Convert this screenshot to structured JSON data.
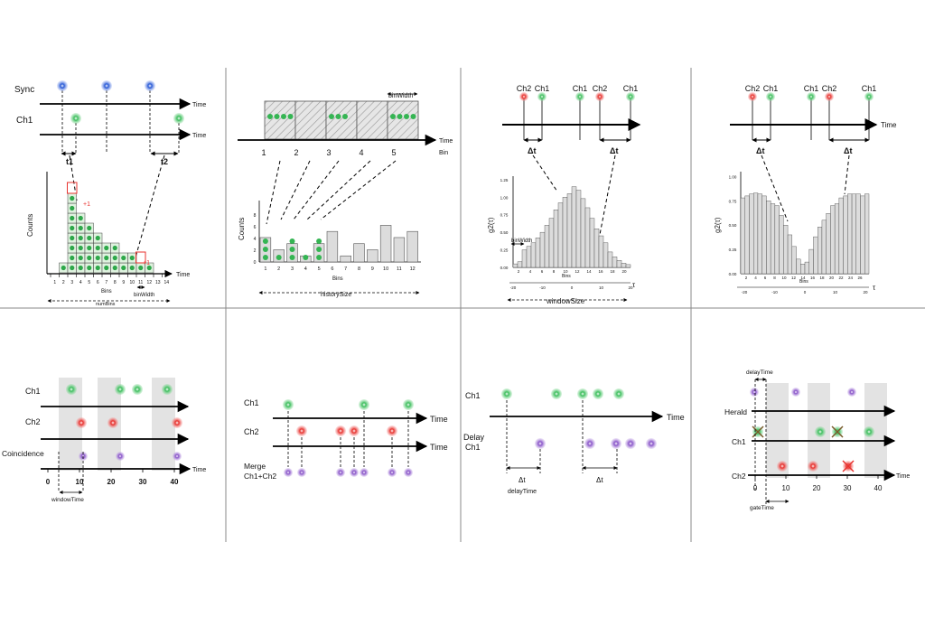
{
  "colors": {
    "green": "#22a64a",
    "red": "#e8332f",
    "blue": "#2a5bd7",
    "purple": "#8a56c9",
    "bar_fill": "#dcdcdc",
    "gate_fill": "#e3e3e3",
    "grid_line": "#777777"
  },
  "common": {
    "time": "Time"
  },
  "panel1": {
    "sync": "Sync",
    "ch1": "Ch1",
    "t1": "t1",
    "t2": "t2",
    "counts": "Counts",
    "plus1": "+1",
    "bins": "Bins",
    "binwidth": "binWidth",
    "numbins": "numBins",
    "ticks": [
      "1",
      "2",
      "3",
      "4",
      "5",
      "6",
      "7",
      "8",
      "9",
      "10",
      "11",
      "12",
      "13",
      "14"
    ],
    "histogram": [
      0,
      1,
      8,
      6,
      5,
      4,
      3,
      3,
      2,
      2,
      1,
      1,
      0,
      0
    ]
  },
  "panel2": {
    "binwidth": "binWidth",
    "bin": "Bin",
    "segments": [
      "1",
      "2",
      "3",
      "4",
      "5"
    ],
    "counts": "Counts",
    "bins": "Bins",
    "historysize": "historySize",
    "yticks": [
      "0",
      "2",
      "4",
      "6",
      "8"
    ],
    "xticks": [
      "1",
      "2",
      "3",
      "4",
      "5",
      "6",
      "7",
      "8",
      "9",
      "10",
      "11",
      "12"
    ],
    "values": [
      4,
      2,
      3,
      1,
      3,
      5,
      1,
      3,
      2,
      6,
      4,
      5
    ]
  },
  "panel3": {
    "labels": [
      "Ch2",
      "Ch1",
      "Ch1",
      "Ch2",
      "Ch1"
    ],
    "dt": "Δt",
    "ylabel": "g2(τ)",
    "tau": "τ",
    "binwidth": "binWidth",
    "bins": "Bins",
    "windowsize": "windowSize",
    "yticks": [
      "0.00",
      "0.25",
      "0.50",
      "0.75",
      "1.00",
      "1.25"
    ],
    "xticks_top": [
      "2",
      "4",
      "6",
      "8",
      "10",
      "12",
      "14",
      "16",
      "18",
      "20"
    ],
    "xticks_bottom": [
      "-20",
      "-10",
      "0",
      "10",
      "20"
    ],
    "values": [
      0.05,
      0.08,
      0.25,
      0.3,
      0.35,
      0.42,
      0.5,
      0.6,
      0.7,
      0.82,
      0.92,
      1.0,
      1.05,
      1.15,
      1.1,
      0.98,
      0.85,
      0.7,
      0.55,
      0.45,
      0.35,
      0.22,
      0.15,
      0.1,
      0.06,
      0.04
    ]
  },
  "panel4": {
    "labels": [
      "Ch2",
      "Ch1",
      "Ch1",
      "Ch2",
      "Ch1"
    ],
    "time": "Time",
    "dt": "Δt",
    "ylabel": "g2(τ)",
    "tau": "τ",
    "bins": "Bins",
    "yticks": [
      "0.00",
      "0.25",
      "0.50",
      "0.75",
      "1.00"
    ],
    "xticks_top": [
      "2",
      "4",
      "6",
      "8",
      "10",
      "12",
      "14",
      "16",
      "18",
      "20",
      "22",
      "24",
      "26"
    ],
    "xticks_bottom": [
      "-20",
      "-10",
      "0",
      "10",
      "20"
    ],
    "values": [
      0.78,
      0.8,
      0.82,
      0.83,
      0.82,
      0.8,
      0.75,
      0.72,
      0.7,
      0.6,
      0.5,
      0.4,
      0.28,
      0.15,
      0.1,
      0.12,
      0.25,
      0.38,
      0.48,
      0.55,
      0.62,
      0.7,
      0.72,
      0.78,
      0.8,
      0.82,
      0.82,
      0.82,
      0.8,
      0.82
    ]
  },
  "panel5": {
    "ch1": "Ch1",
    "ch2": "Ch2",
    "coincidence": "Coincidence",
    "xticks": [
      "0",
      "10",
      "20",
      "30",
      "40"
    ],
    "windowtime": "windowTime"
  },
  "panel6": {
    "ch1": "Ch1",
    "ch2": "Ch2",
    "merge1": "Merge",
    "merge2": "Ch1+Ch2"
  },
  "panel7": {
    "ch1": "Ch1",
    "delay1": "Delay",
    "delay2": "Ch1",
    "dt": "Δt",
    "delaytime": "delayTime"
  },
  "panel8": {
    "delaytime": "delayTime",
    "herald": "Herald",
    "ch1": "Ch1",
    "ch2": "Ch2",
    "xticks": [
      "0",
      "10",
      "20",
      "30",
      "40"
    ],
    "gatetime": "gateTime"
  }
}
